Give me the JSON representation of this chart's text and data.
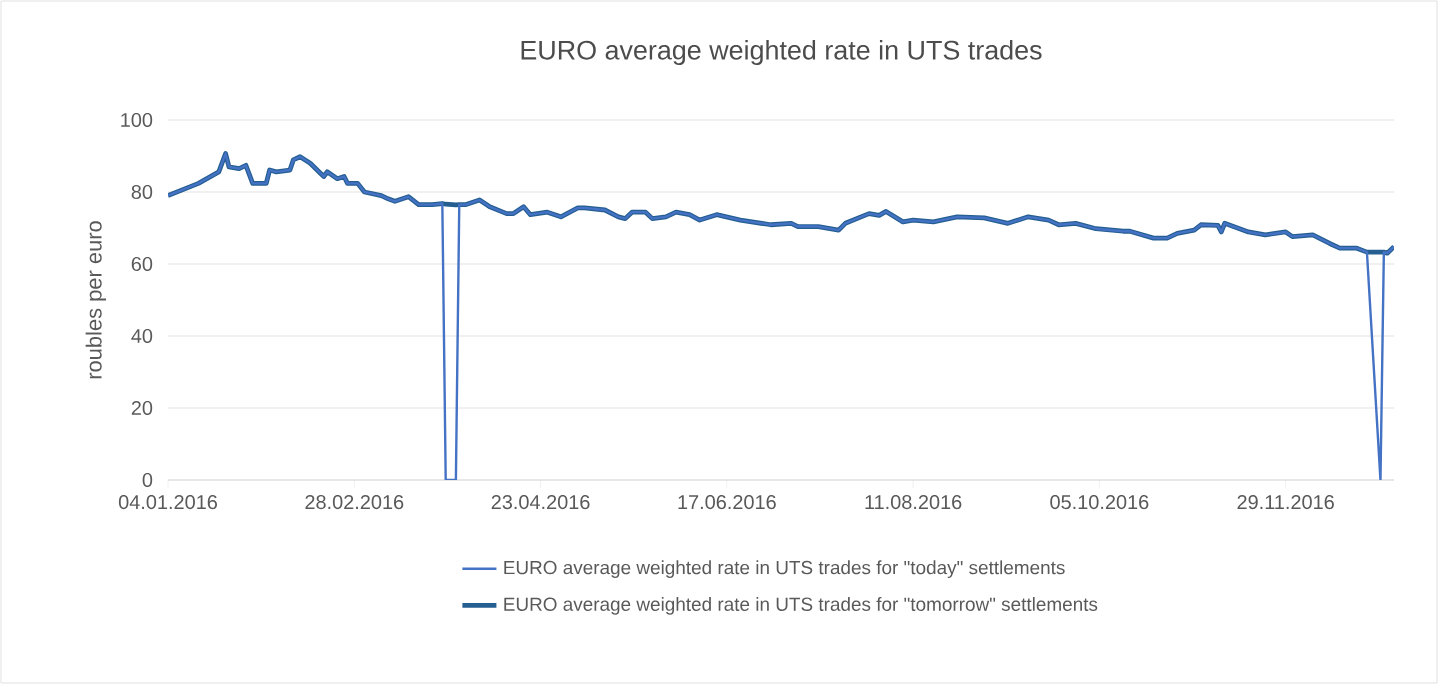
{
  "chart_data": {
    "type": "line",
    "title": "EURO average weighted rate in UTS trades",
    "ylabel": "roubles per euro",
    "x": [
      "2016-01-04",
      "2016-01-13",
      "2016-01-19",
      "2016-01-21",
      "2016-01-22",
      "2016-01-25",
      "2016-01-27",
      "2016-01-29",
      "2016-02-02",
      "2016-02-03",
      "2016-02-05",
      "2016-02-09",
      "2016-02-10",
      "2016-02-12",
      "2016-02-15",
      "2016-02-18",
      "2016-02-19",
      "2016-02-20",
      "2016-02-23",
      "2016-02-25",
      "2016-02-26",
      "2016-02-29",
      "2016-03-02",
      "2016-03-07",
      "2016-03-09",
      "2016-03-11",
      "2016-03-15",
      "2016-03-18",
      "2016-03-22",
      "2016-03-25",
      "2016-03-26",
      "2016-03-29",
      "2016-03-30",
      "2016-04-01",
      "2016-04-05",
      "2016-04-08",
      "2016-04-13",
      "2016-04-15",
      "2016-04-18",
      "2016-04-20",
      "2016-04-25",
      "2016-04-29",
      "2016-05-04",
      "2016-05-06",
      "2016-05-12",
      "2016-05-16",
      "2016-05-18",
      "2016-05-20",
      "2016-05-24",
      "2016-05-26",
      "2016-05-30",
      "2016-06-02",
      "2016-06-06",
      "2016-06-09",
      "2016-06-14",
      "2016-06-21",
      "2016-06-30",
      "2016-07-06",
      "2016-07-08",
      "2016-07-14",
      "2016-07-20",
      "2016-07-22",
      "2016-07-29",
      "2016-08-01",
      "2016-08-03",
      "2016-08-08",
      "2016-08-11",
      "2016-08-17",
      "2016-08-24",
      "2016-09-01",
      "2016-09-08",
      "2016-09-14",
      "2016-09-20",
      "2016-09-23",
      "2016-09-28",
      "2016-10-04",
      "2016-10-12",
      "2016-10-14",
      "2016-10-21",
      "2016-10-25",
      "2016-10-28",
      "2016-11-02",
      "2016-11-04",
      "2016-11-09",
      "2016-11-10",
      "2016-11-11",
      "2016-11-18",
      "2016-11-23",
      "2016-11-29",
      "2016-12-01",
      "2016-12-07",
      "2016-12-12",
      "2016-12-15",
      "2016-12-20",
      "2016-12-23",
      "2016-12-27",
      "2016-12-28",
      "2016-12-29",
      "2016-12-31"
    ],
    "series": [
      {
        "name": "EURO average weighted rate in UTS trades for \"today\" settlements",
        "color": "#4472c4",
        "values": [
          79,
          82.4,
          85.6,
          90.7,
          87,
          86.5,
          87.4,
          82.4,
          82.4,
          86.1,
          85.6,
          86.1,
          88.9,
          89.8,
          88,
          85.2,
          84.3,
          85.6,
          83.7,
          84.3,
          82.4,
          82.4,
          80,
          79,
          78.1,
          77.4,
          78.7,
          76.5,
          76.5,
          76.8,
          0,
          0,
          76.5,
          76.5,
          77.8,
          75.9,
          74,
          74,
          75.9,
          73.7,
          74.4,
          73.1,
          75.6,
          75.6,
          75,
          73.1,
          72.6,
          74.4,
          74.4,
          72.6,
          73.1,
          74.4,
          73.7,
          72.2,
          73.7,
          72.2,
          70.9,
          71.3,
          70.4,
          70.4,
          69.4,
          71.3,
          74,
          73.5,
          74.6,
          71.7,
          72.2,
          71.7,
          73.1,
          72.8,
          71.3,
          73.1,
          72.2,
          70.9,
          71.3,
          69.8,
          69.1,
          69.1,
          67.2,
          67.2,
          68.5,
          69.4,
          70.9,
          70.7,
          68.9,
          71.3,
          68.9,
          68.1,
          68.9,
          67.6,
          68.1,
          65.7,
          64.4,
          64.4,
          63.3,
          0,
          63.3,
          63,
          64.8
        ]
      },
      {
        "name": "EURO average weighted rate in UTS trades for \"tomorrow\" settlements",
        "color": "#255e91",
        "values": [
          79,
          82.4,
          85.6,
          90.7,
          87,
          86.5,
          87.4,
          82.4,
          82.4,
          86.1,
          85.6,
          86.1,
          88.9,
          89.8,
          88,
          85.2,
          84.3,
          85.6,
          83.7,
          84.3,
          82.4,
          82.4,
          80,
          79,
          78.1,
          77.4,
          78.7,
          76.5,
          76.5,
          76.8,
          76.6,
          76.4,
          76.5,
          76.5,
          77.8,
          75.9,
          74,
          74,
          75.9,
          73.7,
          74.4,
          73.1,
          75.6,
          75.6,
          75,
          73.1,
          72.6,
          74.4,
          74.4,
          72.6,
          73.1,
          74.4,
          73.7,
          72.2,
          73.7,
          72.2,
          70.9,
          71.3,
          70.4,
          70.4,
          69.4,
          71.3,
          74,
          73.5,
          74.6,
          71.7,
          72.2,
          71.7,
          73.1,
          72.8,
          71.3,
          73.1,
          72.2,
          70.9,
          71.3,
          69.8,
          69.1,
          69.1,
          67.2,
          67.2,
          68.5,
          69.4,
          70.9,
          70.7,
          68.9,
          71.3,
          68.9,
          68.1,
          68.9,
          67.6,
          68.1,
          65.7,
          64.4,
          64.4,
          63.3,
          63.3,
          63.3,
          63,
          64.8
        ]
      }
    ],
    "xlim": [
      "2016-01-04",
      "2016-12-31"
    ],
    "xticks": [
      {
        "value": "2016-01-04",
        "label": "04.01.2016"
      },
      {
        "value": "2016-02-28",
        "label": "28.02.2016"
      },
      {
        "value": "2016-04-23",
        "label": "23.04.2016"
      },
      {
        "value": "2016-06-17",
        "label": "17.06.2016"
      },
      {
        "value": "2016-08-11",
        "label": "11.08.2016"
      },
      {
        "value": "2016-10-05",
        "label": "05.10.2016"
      },
      {
        "value": "2016-11-29",
        "label": "29.11.2016"
      }
    ],
    "ylim": [
      0,
      100
    ],
    "yticks": [
      0,
      20,
      40,
      60,
      80,
      100
    ],
    "grid": "y",
    "legend": "bottom",
    "marker": "none",
    "line_style": "solid"
  }
}
